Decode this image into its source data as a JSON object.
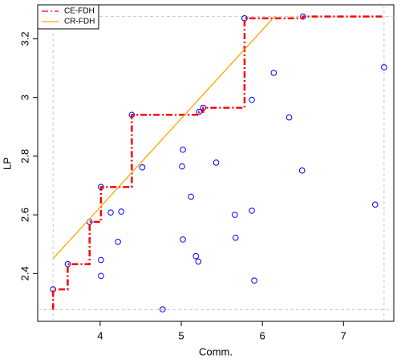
{
  "chart_data": {
    "type": "scatter",
    "x_label": "Comm.",
    "y_label": "LP",
    "xlim": [
      3.23,
      7.62
    ],
    "ylim": [
      2.237,
      3.316
    ],
    "xticks": [
      4,
      5,
      6,
      7
    ],
    "yticks": [
      2.4,
      2.6,
      2.8,
      3.0,
      3.2
    ],
    "reference_lines": {
      "color": "#c8c8c8",
      "x": [
        3.42,
        7.5
      ],
      "y": [
        2.277,
        3.276
      ]
    },
    "points": {
      "color": "#0000ff",
      "x": [
        3.42,
        3.6,
        3.87,
        4.01,
        4.01,
        4.01,
        4.13,
        4.26,
        4.22,
        4.39,
        4.52,
        4.77,
        5.02,
        5.01,
        5.02,
        5.12,
        5.18,
        5.21,
        5.22,
        5.27,
        5.43,
        5.66,
        5.67,
        5.78,
        5.87,
        5.87,
        5.9,
        6.14,
        6.33,
        6.49,
        6.5,
        7.39,
        7.5
      ],
      "y": [
        2.346,
        2.432,
        2.576,
        2.695,
        2.446,
        2.392,
        2.608,
        2.611,
        2.508,
        2.941,
        2.762,
        2.278,
        2.822,
        2.765,
        2.516,
        2.662,
        2.459,
        2.441,
        2.951,
        2.965,
        2.778,
        2.6,
        2.522,
        3.27,
        2.614,
        2.992,
        2.376,
        3.084,
        2.932,
        2.751,
        3.276,
        2.635,
        3.103
      ]
    },
    "series": [
      {
        "name": "CE-FDH",
        "color": "#ff0000",
        "dash": "8 3 2 3",
        "x": [
          3.42,
          3.42,
          3.6,
          3.6,
          3.87,
          3.87,
          4.01,
          4.01,
          4.39,
          4.39,
          5.22,
          5.22,
          5.27,
          5.27,
          5.78,
          5.78,
          6.5,
          6.5,
          7.5
        ],
        "y": [
          2.277,
          2.346,
          2.346,
          2.432,
          2.432,
          2.576,
          2.576,
          2.695,
          2.695,
          2.941,
          2.941,
          2.951,
          2.951,
          2.965,
          2.965,
          3.27,
          3.27,
          3.276,
          3.276
        ]
      },
      {
        "name": "CR-FDH",
        "color": "#ffa500",
        "dash": "none",
        "x": [
          3.42,
          6.15
        ],
        "y": [
          2.451,
          3.276
        ]
      }
    ]
  }
}
